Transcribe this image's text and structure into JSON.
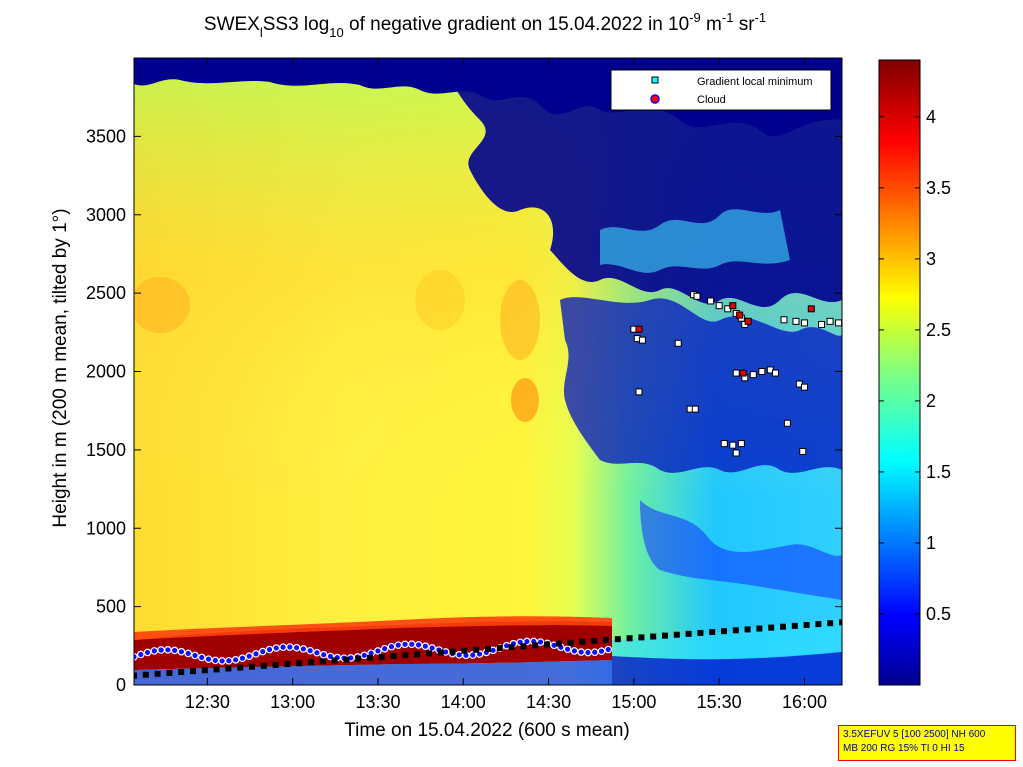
{
  "chart_data": {
    "type": "heatmap",
    "title": {
      "prefix": "SWEX",
      "sub1": "l",
      "mid": "SS3 log",
      "sub2": "10",
      "text1": " of negative gradient on 15.04.2022 in 10",
      "sup1": "-9",
      "text2": " m",
      "sup2": "-1",
      "text3": " sr",
      "sup3": "-1"
    },
    "xlabel": "Time on 15.04.2022 (600 s mean)",
    "ylabel": "Height in m (200 m mean, tilted by 1°)",
    "x_range_hours": [
      12.07,
      16.22
    ],
    "y_range": [
      0,
      4000
    ],
    "x_ticks": [
      {
        "label": "12:30",
        "value": 12.5
      },
      {
        "label": "13:00",
        "value": 13.0
      },
      {
        "label": "13:30",
        "value": 13.5
      },
      {
        "label": "14:00",
        "value": 14.0
      },
      {
        "label": "14:30",
        "value": 14.5
      },
      {
        "label": "15:00",
        "value": 15.0
      },
      {
        "label": "15:30",
        "value": 15.5
      },
      {
        "label": "16:00",
        "value": 16.0
      }
    ],
    "y_ticks": [
      {
        "label": "0",
        "value": 0
      },
      {
        "label": "500",
        "value": 500
      },
      {
        "label": "1000",
        "value": 1000
      },
      {
        "label": "1500",
        "value": 1500
      },
      {
        "label": "2000",
        "value": 2000
      },
      {
        "label": "2500",
        "value": 2500
      },
      {
        "label": "3000",
        "value": 3000
      },
      {
        "label": "3500",
        "value": 3500
      }
    ],
    "colorbar": {
      "range": [
        0,
        4.4
      ],
      "ticks": [
        {
          "label": "0.5",
          "value": 0.5
        },
        {
          "label": "1",
          "value": 1
        },
        {
          "label": "1.5",
          "value": 1.5
        },
        {
          "label": "2",
          "value": 2
        },
        {
          "label": "2.5",
          "value": 2.5
        },
        {
          "label": "3",
          "value": 3
        },
        {
          "label": "3.5",
          "value": 3.5
        },
        {
          "label": "4",
          "value": 4
        }
      ]
    },
    "legend": {
      "placement": "top-right",
      "entries": [
        {
          "label": "Gradient local minimum",
          "marker": "square",
          "color": "#00ffff"
        },
        {
          "label": "Cloud",
          "marker": "circle",
          "color": "#ff0000"
        }
      ]
    },
    "gradient_minimum_points": [
      {
        "t": 15.0,
        "h": 2270
      },
      {
        "t": 15.02,
        "h": 2210
      },
      {
        "t": 15.05,
        "h": 2200
      },
      {
        "t": 15.35,
        "h": 2490
      },
      {
        "t": 15.37,
        "h": 2480
      },
      {
        "t": 15.45,
        "h": 2450
      },
      {
        "t": 15.5,
        "h": 2420
      },
      {
        "t": 15.55,
        "h": 2400
      },
      {
        "t": 15.6,
        "h": 2370
      },
      {
        "t": 15.63,
        "h": 2340
      },
      {
        "t": 15.65,
        "h": 2300
      },
      {
        "t": 15.88,
        "h": 2330
      },
      {
        "t": 15.95,
        "h": 2320
      },
      {
        "t": 16.0,
        "h": 2310
      },
      {
        "t": 16.1,
        "h": 2300
      },
      {
        "t": 16.15,
        "h": 2320
      },
      {
        "t": 16.2,
        "h": 2310
      },
      {
        "t": 15.26,
        "h": 2180
      },
      {
        "t": 15.03,
        "h": 1870
      },
      {
        "t": 15.33,
        "h": 1760
      },
      {
        "t": 15.36,
        "h": 1760
      },
      {
        "t": 15.6,
        "h": 1990
      },
      {
        "t": 15.65,
        "h": 1960
      },
      {
        "t": 15.7,
        "h": 1980
      },
      {
        "t": 15.75,
        "h": 2000
      },
      {
        "t": 15.8,
        "h": 2010
      },
      {
        "t": 15.83,
        "h": 1990
      },
      {
        "t": 15.97,
        "h": 1920
      },
      {
        "t": 16.0,
        "h": 1900
      },
      {
        "t": 15.9,
        "h": 1670
      },
      {
        "t": 15.53,
        "h": 1540
      },
      {
        "t": 15.58,
        "h": 1530
      },
      {
        "t": 15.6,
        "h": 1480
      },
      {
        "t": 15.63,
        "h": 1540
      },
      {
        "t": 15.99,
        "h": 1490
      }
    ],
    "cloud_points": [
      {
        "t": 15.03,
        "h": 2270
      },
      {
        "t": 15.67,
        "h": 2320
      },
      {
        "t": 15.58,
        "h": 2420
      },
      {
        "t": 15.64,
        "h": 1990
      },
      {
        "t": 16.04,
        "h": 2400
      },
      {
        "t": 15.62,
        "h": 2360
      }
    ],
    "boundary_layer_band": {
      "from_t": 12.07,
      "to_t": 14.85,
      "h_min": 120,
      "h_max": 340
    }
  },
  "info_box": {
    "line1": "3.5XEFUV 5 [100 2500] NH 600",
    "line2": "MB 200 RG 15% TI 0 HI 15"
  }
}
